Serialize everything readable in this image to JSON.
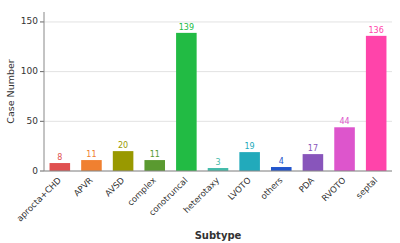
{
  "chart_data": {
    "type": "bar",
    "categories": [
      "aprocta+CHD",
      "APVR",
      "AVSD",
      "complex",
      "conotruncal",
      "heterotaxy",
      "LVOTO",
      "others",
      "PDA",
      "RVOTO",
      "septal"
    ],
    "values": [
      8,
      11,
      20,
      11,
      139,
      3,
      19,
      4,
      17,
      44,
      136
    ],
    "colors": [
      "#e05050",
      "#f08030",
      "#999900",
      "#5a9a30",
      "#22bb44",
      "#44bbaa",
      "#22aabb",
      "#2255cc",
      "#8855bb",
      "#dd55cc",
      "#ff44aa"
    ],
    "xlabel": "Subtype",
    "ylabel": "Case Number",
    "ylim": [
      0,
      160
    ],
    "yticks": [
      0,
      50,
      100,
      150
    ],
    "grid": true,
    "data_labels": true
  }
}
